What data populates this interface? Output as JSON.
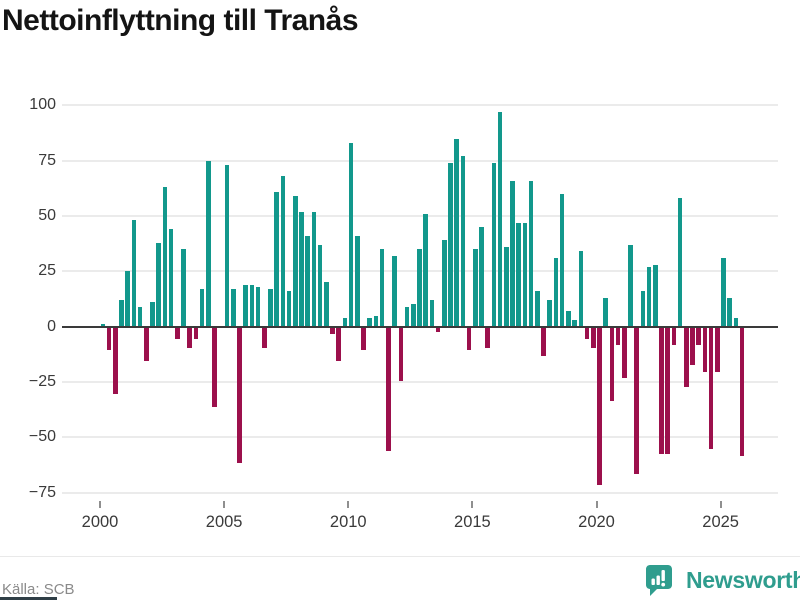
{
  "title": "Nettoinflyttning till Tranås",
  "source": "Källa: SCB",
  "brand": {
    "name": "Newsworthy",
    "color": "#2f9d8e"
  },
  "chart_data": {
    "type": "bar",
    "title": "Nettoinflyttning till Tranås",
    "x_unit": "quarter",
    "start": "2000Q1",
    "end": "2025Q4",
    "start_year": 2000,
    "x_tick_years": [
      2000,
      2005,
      2010,
      2015,
      2020,
      2025
    ],
    "y_ticks": [
      100,
      75,
      50,
      25,
      0,
      -25,
      -50,
      -75
    ],
    "ylim": [
      -80,
      110
    ],
    "grid": true,
    "legend": "none",
    "colors": {
      "positive": "#12988c",
      "negative": "#9c104c"
    },
    "values": [
      1,
      -10,
      -30,
      12,
      25,
      48,
      9,
      -15,
      11,
      38,
      63,
      44,
      -5,
      35,
      -9,
      -5,
      17,
      75,
      -36,
      0,
      73,
      17,
      -61,
      19,
      19,
      18,
      -9,
      17,
      61,
      68,
      16,
      59,
      52,
      41,
      52,
      37,
      20,
      -3,
      -15,
      4,
      83,
      41,
      -10,
      4,
      5,
      35,
      -56,
      32,
      -24,
      9,
      10,
      35,
      51,
      12,
      -2,
      39,
      74,
      85,
      77,
      -10,
      35,
      45,
      -9,
      74,
      97,
      36,
      66,
      47,
      47,
      66,
      16,
      -13,
      12,
      31,
      60,
      7,
      3,
      34,
      -5,
      -9,
      -71,
      13,
      -33,
      -8,
      -23,
      37,
      -66,
      16,
      27,
      28,
      -57,
      -57,
      -8,
      58,
      -27,
      -17,
      -8,
      -20,
      -55,
      -20,
      31,
      13,
      4,
      -58
    ]
  }
}
